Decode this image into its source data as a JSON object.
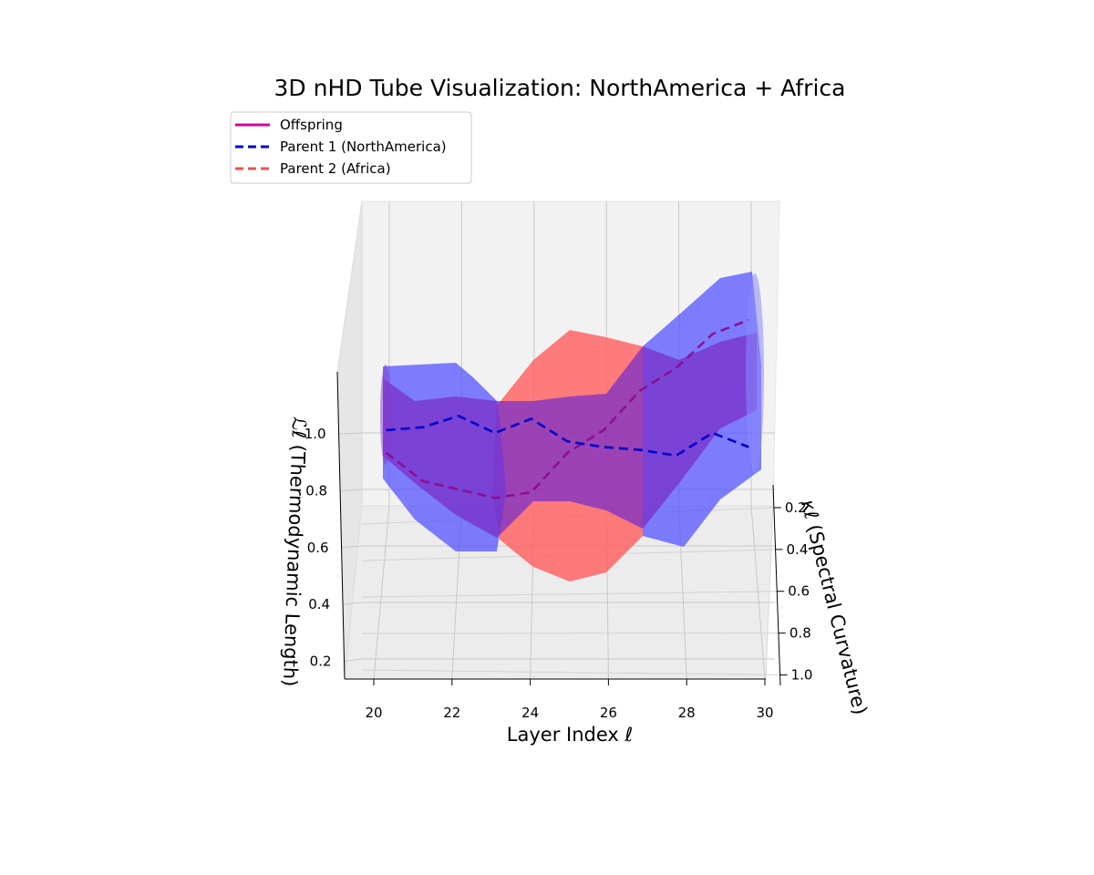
{
  "chart_data": {
    "type": "line",
    "title": "3D nHD Tube Visualization: NorthAmerica + Africa",
    "xlabel": "Layer Index ℓ",
    "ylabel": "κℓ (Spectral Curvature)",
    "zlabel": "ℒℓ (Thermodynamic Length)",
    "x_ticks": [
      "20",
      "22",
      "24",
      "26",
      "28",
      "30"
    ],
    "y_ticks": [
      "0.2",
      "0.4",
      "0.6",
      "0.8",
      "1.0"
    ],
    "z_ticks": [
      "0.2",
      "0.4",
      "0.6",
      "0.8",
      "1.0"
    ],
    "xlim": [
      19.2,
      30.8
    ],
    "ylim": [
      0.1,
      1.05
    ],
    "zlim": [
      0.15,
      1.22
    ],
    "grid": true,
    "legend_position": "top-left",
    "series": [
      {
        "name": "Offspring",
        "color": "#d6009f",
        "style": "solid",
        "x": [
          20,
          21,
          22,
          23,
          24,
          25,
          26,
          27,
          28,
          29,
          30
        ],
        "y": [
          0.5,
          0.5,
          0.5,
          0.5,
          0.5,
          0.5,
          0.5,
          0.5,
          0.5,
          0.5,
          0.5
        ],
        "z": [
          0.93,
          0.83,
          0.8,
          0.77,
          0.79,
          0.93,
          1.01,
          1.15,
          1.23,
          1.35,
          1.4
        ]
      },
      {
        "name": "Parent 1 (NorthAmerica)",
        "color": "#0000cc",
        "style": "dashed",
        "x": [
          20,
          21,
          22,
          23,
          24,
          25,
          26,
          27,
          28,
          29,
          30
        ],
        "y": [
          0.5,
          0.5,
          0.5,
          0.5,
          0.5,
          0.5,
          0.5,
          0.5,
          0.5,
          0.5,
          0.5
        ],
        "z": [
          1.01,
          1.02,
          1.06,
          1.0,
          1.05,
          0.97,
          0.95,
          0.94,
          0.92,
          1.0,
          0.95
        ]
      },
      {
        "name": "Parent 2 (Africa)",
        "color": "#f05050",
        "style": "dashed",
        "x": [
          20,
          21,
          22,
          23,
          24,
          25,
          26,
          27,
          28,
          29,
          30
        ],
        "y": [
          0.5,
          0.5,
          0.5,
          0.5,
          0.5,
          0.5,
          0.5,
          0.5,
          0.5,
          0.5,
          0.5
        ],
        "z": [
          0.93,
          0.83,
          0.8,
          0.77,
          0.79,
          0.93,
          1.01,
          1.15,
          1.23,
          1.35,
          1.4
        ]
      }
    ]
  }
}
